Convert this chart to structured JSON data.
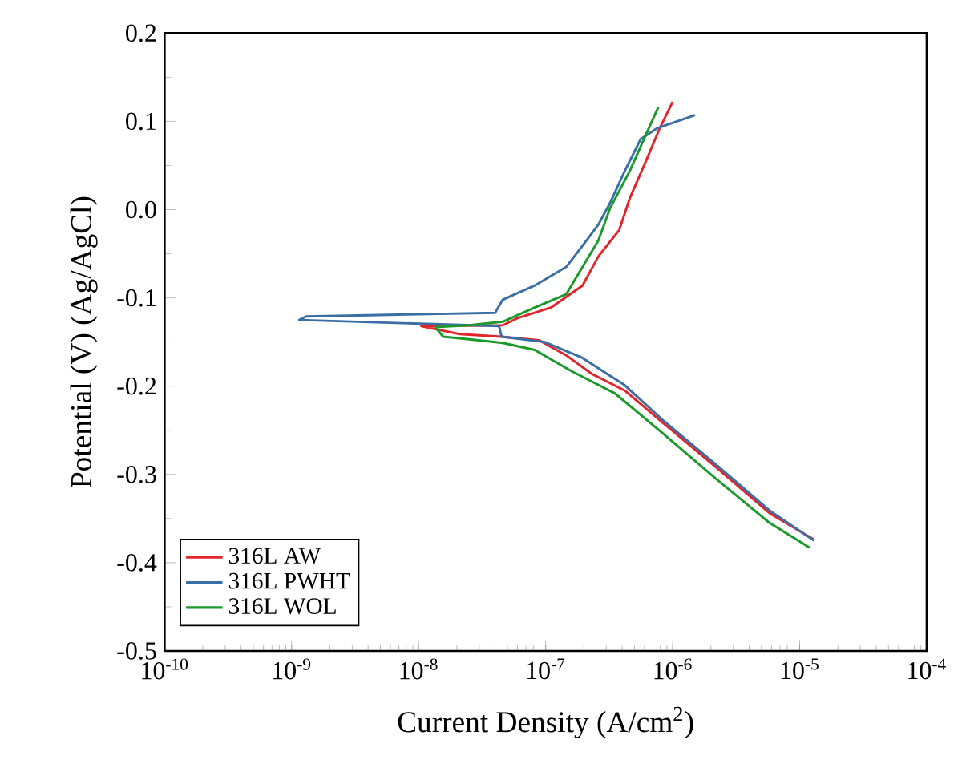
{
  "chart_data": {
    "type": "line",
    "xlabel": "Current Density (A/cm$^{2}$)",
    "ylabel": "Potential (V) (Ag/AgCl)",
    "log": "x",
    "legend": "bottom left",
    "marker": "none",
    "line_style": "solid",
    "xlim": [
      1e-10,
      0.0001
    ],
    "ylim": [
      -0.5,
      0.2
    ],
    "xticks": [
      {
        "value": 1e-10,
        "label": "10$^{-10}$"
      },
      {
        "value": 1e-09,
        "label": "10$^{-9}$"
      },
      {
        "value": 1e-08,
        "label": "10$^{-8}$"
      },
      {
        "value": 1e-07,
        "label": "10$^{-7}$"
      },
      {
        "value": 1e-06,
        "label": "10$^{-6}$"
      },
      {
        "value": 1e-05,
        "label": "10$^{-5}$"
      },
      {
        "value": 0.0001,
        "label": "10$^{-4}$"
      }
    ],
    "yticks": [
      0.2,
      0.1,
      {
        "value": 0,
        "label": "0.0"
      },
      -0.1,
      -0.2,
      -0.3,
      -0.4,
      -0.5
    ],
    "series": [
      {
        "name": "316L AW",
        "color": "#e0252b",
        "x": [
          1.3e-05,
          5.8e-06,
          2.2e-06,
          8.3e-07,
          4.2e-07,
          2.3e-07,
          1.45e-07,
          8.9e-08,
          4.5e-08,
          2.1e-08,
          1.05e-08,
          4.6e-08,
          6e-08,
          1.1e-07,
          1.95e-07,
          2.6e-07,
          3.8e-07,
          4.6e-07,
          6.2e-07,
          7.9e-07,
          1e-06
        ],
        "values": [
          -0.374,
          -0.344,
          -0.292,
          -0.241,
          -0.205,
          -0.186,
          -0.165,
          -0.148,
          -0.144,
          -0.141,
          -0.132,
          -0.131,
          -0.123,
          -0.111,
          -0.086,
          -0.053,
          -0.023,
          0.013,
          0.056,
          0.092,
          0.122
        ]
      },
      {
        "name": "316L PWHT",
        "color": "#3a6ea5",
        "x": [
          1.3e-05,
          5.8e-06,
          2.2e-06,
          8.3e-07,
          4.2e-07,
          1.95e-07,
          9.8e-08,
          4.5e-08,
          4.3e-08,
          1.15e-09,
          1.3e-09,
          4e-08,
          4.6e-08,
          8.2e-08,
          1.45e-07,
          1.95e-07,
          2.6e-07,
          3.2e-07,
          4.2e-07,
          5.6e-07,
          7.5e-07,
          1.5e-06
        ],
        "values": [
          -0.375,
          -0.341,
          -0.289,
          -0.238,
          -0.199,
          -0.168,
          -0.15,
          -0.144,
          -0.132,
          -0.125,
          -0.121,
          -0.117,
          -0.102,
          -0.086,
          -0.065,
          -0.041,
          -0.017,
          0.007,
          0.044,
          0.08,
          0.092,
          0.107
        ]
      },
      {
        "name": "316L WOL",
        "color": "#1a9a2a",
        "x": [
          1.2e-05,
          5.8e-06,
          2.2e-06,
          8.3e-07,
          3.5e-07,
          1.6e-07,
          8.2e-08,
          4.6e-08,
          2.5e-08,
          1.56e-08,
          1.35e-08,
          2.5e-08,
          4.6e-08,
          8.2e-08,
          1.45e-07,
          1.95e-07,
          2.6e-07,
          3.2e-07,
          4.6e-07,
          6.2e-07,
          7.7e-07
        ],
        "values": [
          -0.383,
          -0.355,
          -0.305,
          -0.253,
          -0.208,
          -0.183,
          -0.159,
          -0.151,
          -0.147,
          -0.144,
          -0.133,
          -0.131,
          -0.127,
          -0.111,
          -0.096,
          -0.065,
          -0.035,
          0.001,
          0.044,
          0.086,
          0.116
        ]
      }
    ]
  }
}
